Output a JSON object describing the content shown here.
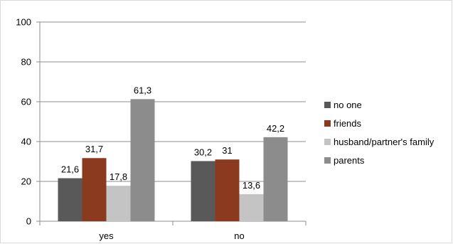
{
  "chart_data": {
    "type": "bar",
    "categories": [
      "yes",
      "no"
    ],
    "series": [
      {
        "name": "no one",
        "values": [
          21.6,
          30.2
        ],
        "labels": [
          "21,6",
          "30,2"
        ],
        "color": "#595959"
      },
      {
        "name": "friends",
        "values": [
          31.7,
          31
        ],
        "labels": [
          "31,7",
          "31"
        ],
        "color": "#8b3a1f"
      },
      {
        "name": "husband/partner's family",
        "values": [
          17.8,
          13.6
        ],
        "labels": [
          "17,8",
          "13,6"
        ],
        "color": "#c4c4c4"
      },
      {
        "name": "parents",
        "values": [
          61.3,
          42.2
        ],
        "labels": [
          "61,3",
          "42,2"
        ],
        "color": "#8c8c8c"
      }
    ],
    "yticks": [
      "0",
      "20",
      "40",
      "60",
      "80",
      "100"
    ],
    "ylim": [
      0,
      100
    ],
    "grid": true,
    "legend_position": "right"
  }
}
